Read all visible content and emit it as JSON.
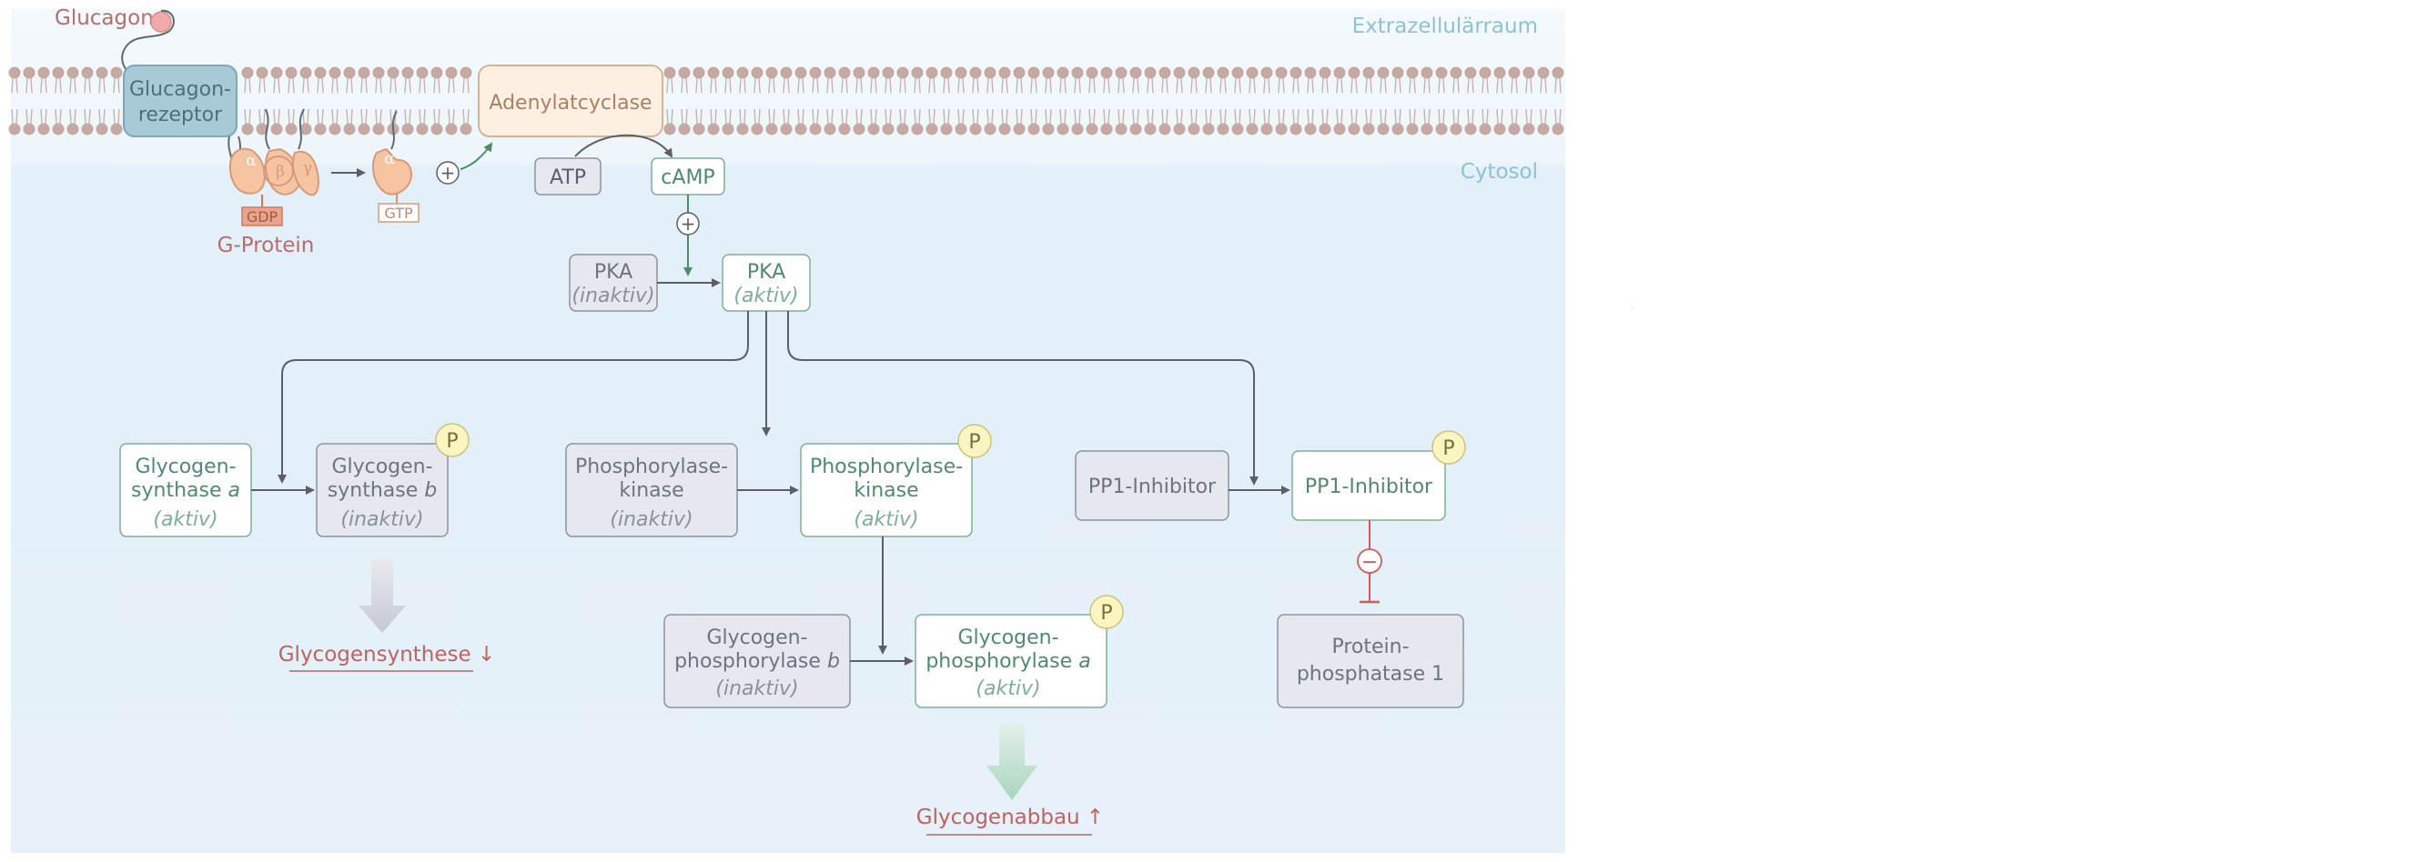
{
  "labels": {
    "glucagon": "Glucagon",
    "extracellular": "Extrazellulärraum",
    "cytosol": "Cytosol",
    "receptor_l1": "Glucagon-",
    "receptor_l2": "rezeptor",
    "adenylatcyclase": "Adenylatcyclase",
    "g_protein": "G-Protein",
    "gdp": "GDP",
    "gtp": "GTP",
    "alpha": "α",
    "beta": "β",
    "gamma": "γ",
    "plus": "+",
    "minus": "−",
    "atp": "ATP",
    "camp": "cAMP",
    "pka": "PKA",
    "inaktiv": "(inaktiv)",
    "aktiv": "(aktiv)",
    "gs_a_l1": "Glycogen-",
    "gs_a_l2a": "synthase ",
    "gs_a_l2b": "a",
    "gs_b_l1": "Glycogen-",
    "gs_b_l2a": "synthase ",
    "gs_b_l2b": "b",
    "phk_l1": "Phosphorylase-",
    "phk_l2": "kinase",
    "pp1i": "PP1-Inhibitor",
    "gp_l1": "Glycogen-",
    "gp_b_l2a": "phosphorylase ",
    "gp_b_l2b": "b",
    "gp_a_l2a": "phosphorylase ",
    "gp_a_l2b": "a",
    "pp1_l1": "Protein-",
    "pp1_l2": "phosphatase 1",
    "p": "P",
    "glycogensynthese": "Glycogensynthese ↓",
    "glycogenabbau": "Glycogenabbau ↑"
  },
  "colors": {
    "membrane_head": "#c4aaa2",
    "cytosol_bg": "#e3f0f9",
    "active_text": "#4f8a6b",
    "inactive_text": "#6f737c",
    "inactive_fill": "#e6e8ef",
    "receptor_fill": "#a8cad6",
    "adenylat_fill": "#fdf0e3",
    "gprotein_fill": "#f4c4a3",
    "p_fill": "#fbf5c2",
    "inhibit_red": "#d35b5b",
    "effect_red": "#c0625f",
    "label_blue": "#8fc2d1"
  }
}
